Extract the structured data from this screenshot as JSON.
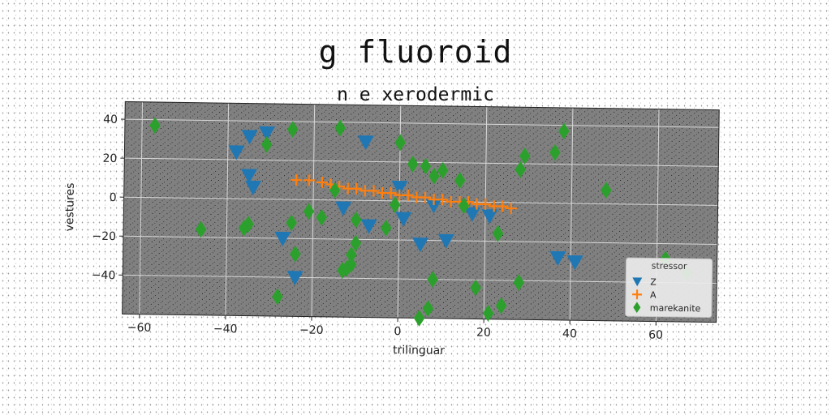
{
  "figure": {
    "title": "g fluoroid"
  },
  "chart_data": {
    "type": "scatter",
    "title": "n e xerodermic",
    "xlabel": "trilinguar",
    "ylabel": "vestures",
    "xlim": [
      -64,
      74
    ],
    "ylim": [
      -60,
      49
    ],
    "xticks": [
      -60,
      -40,
      -20,
      0,
      20,
      40,
      60
    ],
    "yticks": [
      -40,
      -20,
      0,
      20,
      40
    ],
    "xtick_labels": [
      "−60",
      "−40",
      "−20",
      "0",
      "20",
      "40",
      "60"
    ],
    "ytick_labels": [
      "−40",
      "−20",
      "0",
      "20",
      "40"
    ],
    "grid": true,
    "background": "#808080",
    "legend": {
      "title": "stressor",
      "placement": "lower-right"
    },
    "series": [
      {
        "name": "Z",
        "marker": "triangle-down",
        "color": "#1f77b4",
        "points": [
          [
            -38,
            24
          ],
          [
            -35,
            32
          ],
          [
            -31,
            34
          ],
          [
            -35,
            12
          ],
          [
            -34,
            6
          ],
          [
            -13,
            -4
          ],
          [
            -7,
            -13
          ],
          [
            -8,
            30
          ],
          [
            -27,
            -20
          ],
          [
            -24,
            -40
          ],
          [
            1,
            -9
          ],
          [
            5,
            -22
          ],
          [
            11,
            -20
          ],
          [
            0,
            7
          ],
          [
            8,
            -2
          ],
          [
            17,
            -6
          ],
          [
            21,
            -7
          ],
          [
            37,
            -28
          ],
          [
            41,
            -30
          ]
        ]
      },
      {
        "name": "A",
        "marker": "plus",
        "color": "#ff7f0e",
        "points": [
          [
            -24,
            10
          ],
          [
            -21,
            10
          ],
          [
            -18,
            9
          ],
          [
            -16,
            8
          ],
          [
            -14,
            7
          ],
          [
            -12,
            6
          ],
          [
            -10,
            6
          ],
          [
            -8,
            5
          ],
          [
            -6,
            5
          ],
          [
            -4,
            4
          ],
          [
            -2,
            4
          ],
          [
            0,
            3
          ],
          [
            2,
            3
          ],
          [
            4,
            2
          ],
          [
            6,
            2
          ],
          [
            8,
            1
          ],
          [
            10,
            1
          ],
          [
            12,
            0
          ],
          [
            14,
            0
          ],
          [
            16,
            0
          ],
          [
            18,
            -1
          ],
          [
            20,
            -1
          ],
          [
            22,
            -2
          ],
          [
            24,
            -2
          ],
          [
            26,
            -3
          ]
        ]
      },
      {
        "name": "marekanite",
        "marker": "diamond",
        "color": "#2ca02c",
        "points": [
          [
            -57,
            37
          ],
          [
            -46,
            -16
          ],
          [
            -36,
            -15
          ],
          [
            -35,
            -13
          ],
          [
            -31,
            28
          ],
          [
            -25,
            -12
          ],
          [
            -25,
            36
          ],
          [
            -24,
            -28
          ],
          [
            -28,
            -50
          ],
          [
            -21,
            -6
          ],
          [
            -18,
            -9
          ],
          [
            -14,
            37
          ],
          [
            -15,
            5
          ],
          [
            -13,
            -36
          ],
          [
            -12,
            -35
          ],
          [
            -11,
            -33
          ],
          [
            -11,
            -28
          ],
          [
            -10,
            -10
          ],
          [
            -10,
            -22
          ],
          [
            -3,
            -14
          ],
          [
            -1,
            -2
          ],
          [
            0,
            30
          ],
          [
            3,
            19
          ],
          [
            6,
            18
          ],
          [
            8,
            13
          ],
          [
            10,
            16
          ],
          [
            14,
            11
          ],
          [
            15,
            -2
          ],
          [
            7,
            -55
          ],
          [
            8,
            -40
          ],
          [
            5,
            -60
          ],
          [
            18,
            -44
          ],
          [
            21,
            -57
          ],
          [
            24,
            -53
          ],
          [
            23,
            -16
          ],
          [
            28,
            -41
          ],
          [
            28,
            17
          ],
          [
            29,
            24
          ],
          [
            36,
            26
          ],
          [
            38,
            37
          ],
          [
            48,
            7
          ],
          [
            62,
            -28
          ],
          [
            67,
            -35
          ]
        ]
      }
    ]
  }
}
